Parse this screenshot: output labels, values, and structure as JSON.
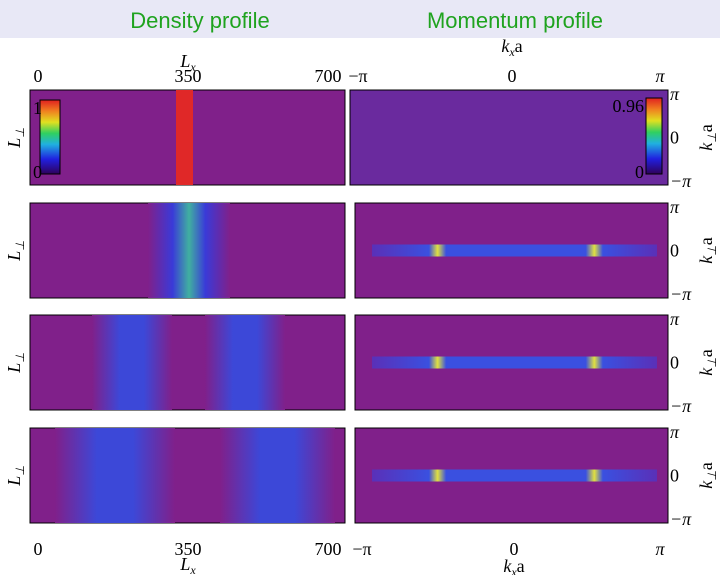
{
  "header": {
    "left_title": "Density profile",
    "right_title": "Momentum profile"
  },
  "density_axis": {
    "x_label": {
      "main": "L",
      "sub": "x"
    },
    "ticks": [
      "0",
      "350",
      "700"
    ],
    "y_label": {
      "main": "L",
      "sub": "⊥"
    }
  },
  "density_colorbar": {
    "max": "1",
    "min": "0"
  },
  "momentum_axis": {
    "x_label": {
      "main": "k",
      "sub": "x",
      "tail": "a"
    },
    "ticks": [
      "−π",
      "0",
      "π"
    ],
    "y_ticks": [
      "π",
      "0",
      "−π"
    ],
    "y_label": {
      "main": "k",
      "sub": "⊥",
      "tail": "a"
    }
  },
  "momentum_colorbar": {
    "max": "0.96",
    "min": "0"
  }
}
